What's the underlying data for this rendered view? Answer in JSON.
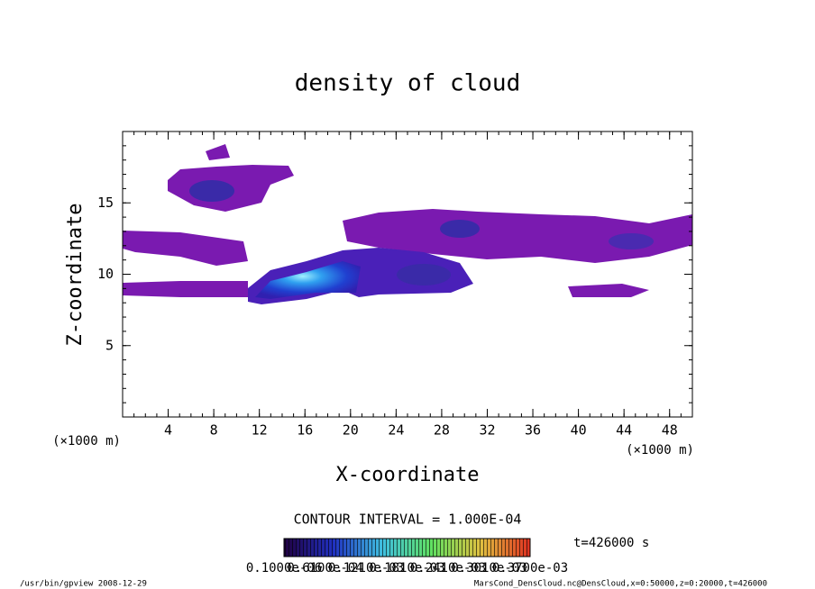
{
  "chart_data": {
    "type": "contour",
    "title": "density of cloud",
    "x_label": "X-coordinate",
    "y_label": "Z-coordinate",
    "x_unit": "(×1000 m)",
    "y_unit": "(×1000 m)",
    "xlim": [
      0,
      50
    ],
    "xticks": [
      4,
      8,
      12,
      16,
      20,
      24,
      28,
      32,
      36,
      40,
      44,
      48
    ],
    "ylim": [
      0,
      20
    ],
    "yticks": [
      5,
      10,
      15
    ],
    "contour_interval": "CONTOUR INTERVAL = 1.000E-04",
    "time": "t=426000 s",
    "colorbar_labels": [
      "0.1000e-06",
      "0.6100e-04",
      "0.1210e-03",
      "0.1810e-03",
      "0.2410e-03",
      "0.3010e-03",
      "0.3700e-03"
    ],
    "footer_left": "/usr/bin/gpview  2008-12-29",
    "footer_right": "MarsCond_DensCloud.nc@DensCloud,x=0:50000,z=0:20000,t=426000"
  }
}
